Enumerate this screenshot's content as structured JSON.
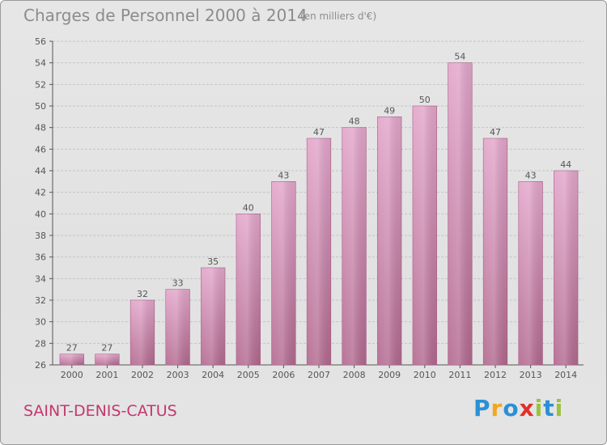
{
  "header": {
    "title": "Charges de Personnel 2000 à 2014",
    "unit_note": "(en milliers d'€)"
  },
  "footer": {
    "place_name": "SAINT-DENIS-CATUS",
    "logo_text": "Proxiti"
  },
  "colors": {
    "bar_top": "#e3a6cb",
    "bar_bottom": "#b2698f",
    "place_text": "#c2396e",
    "logo_letters": [
      "#2c8fd6",
      "#f0a81c",
      "#2c8fd6",
      "#e0302a",
      "#9ac33a",
      "#2c8fd6",
      "#9ac33a"
    ]
  },
  "chart_data": {
    "type": "bar",
    "title": "Charges de Personnel 2000 à 2014",
    "subtitle": "(en milliers d'€)",
    "categories": [
      "2000",
      "2001",
      "2002",
      "2003",
      "2004",
      "2005",
      "2006",
      "2007",
      "2008",
      "2009",
      "2010",
      "2011",
      "2012",
      "2013",
      "2014"
    ],
    "values": [
      27,
      27,
      32,
      33,
      35,
      40,
      43,
      47,
      48,
      49,
      50,
      54,
      47,
      43,
      44
    ],
    "ylim": [
      26,
      56
    ],
    "yticks": [
      26,
      28,
      30,
      32,
      34,
      36,
      38,
      40,
      42,
      44,
      46,
      48,
      50,
      52,
      54,
      56
    ],
    "xlabel": "",
    "ylabel": "",
    "grid": true,
    "data_labels": true
  }
}
